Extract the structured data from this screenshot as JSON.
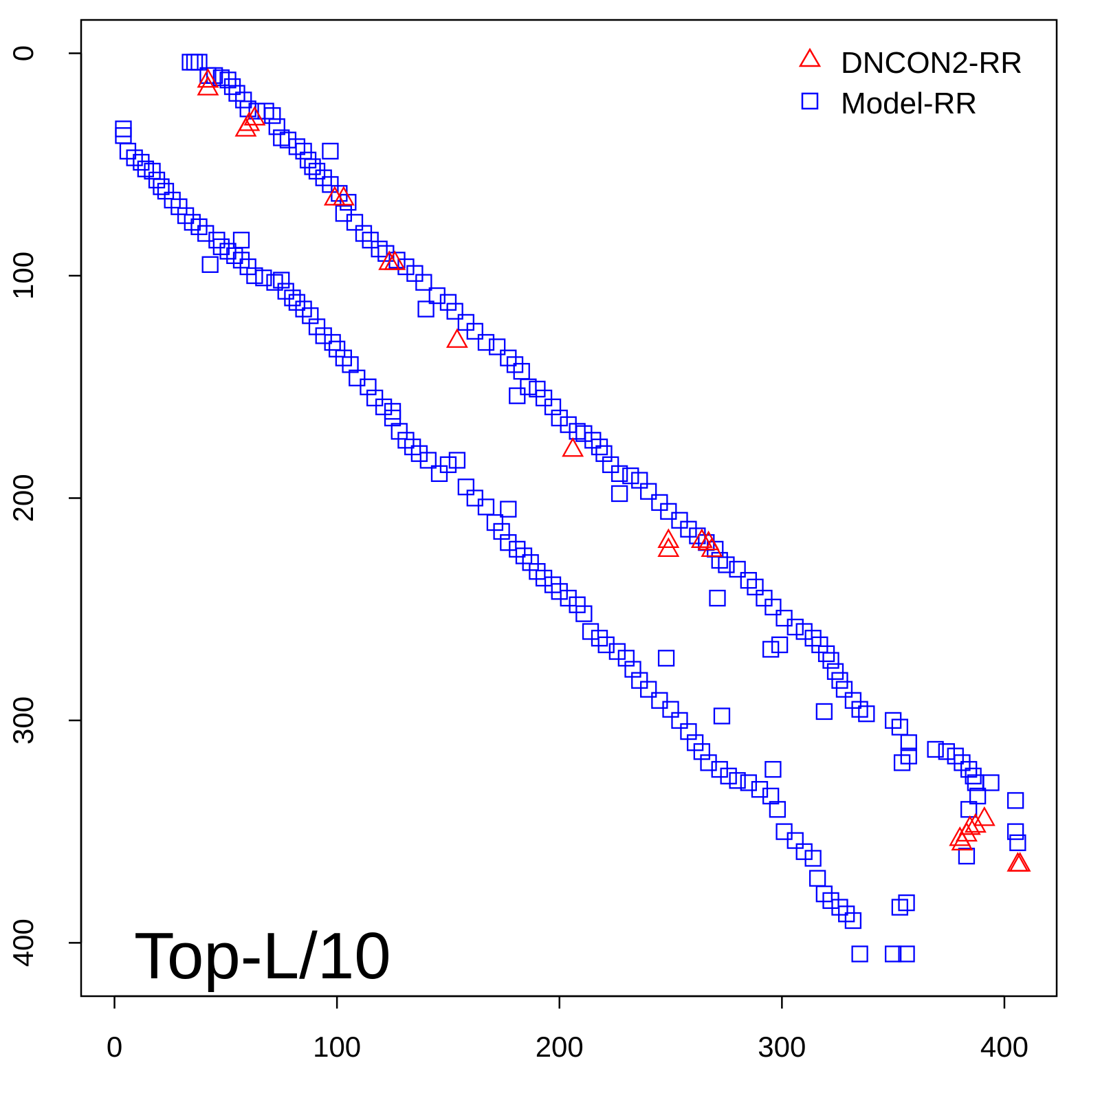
{
  "chart_data": {
    "type": "scatter",
    "title": "",
    "annotation": "Top-L/10",
    "xlabel": "",
    "ylabel": "",
    "xlim": [
      -15,
      423.5
    ],
    "ylim": [
      -15,
      424
    ],
    "y_inverted": true,
    "grid": false,
    "xticks": [
      0,
      100,
      200,
      300,
      400
    ],
    "yticks": [
      0,
      100,
      200,
      300,
      400
    ],
    "xtick_labels": [
      "0",
      "100",
      "200",
      "300",
      "400"
    ],
    "ytick_labels": [
      "0",
      "100",
      "200",
      "300",
      "400"
    ],
    "legend": {
      "placement": "top-right",
      "entries": [
        "DNCON2-RR",
        "Model-RR"
      ]
    },
    "series": [
      {
        "name": "DNCON2-RR",
        "marker": "triangle",
        "color": "#ff0000",
        "points": [
          [
            42,
            12
          ],
          [
            42,
            15.5
          ],
          [
            59,
            34
          ],
          [
            60.5,
            31.5
          ],
          [
            63,
            29
          ],
          [
            99,
            65
          ],
          [
            103,
            65
          ],
          [
            123.5,
            94
          ],
          [
            126,
            94
          ],
          [
            154,
            129
          ],
          [
            206,
            178
          ],
          [
            249,
            219
          ],
          [
            249,
            223
          ],
          [
            264,
            219
          ],
          [
            267,
            220
          ],
          [
            268.5,
            223
          ],
          [
            380,
            353
          ],
          [
            383,
            351
          ],
          [
            384.5,
            348
          ],
          [
            387,
            347
          ],
          [
            391,
            344
          ],
          [
            381,
            355
          ],
          [
            406,
            364.5
          ],
          [
            407,
            364.5
          ]
        ]
      },
      {
        "name": "Model-RR",
        "marker": "square",
        "color": "#0000ff",
        "points": [
          [
            34,
            4
          ],
          [
            36,
            4
          ],
          [
            38,
            4
          ],
          [
            42,
            10
          ],
          [
            45,
            10
          ],
          [
            48,
            11
          ],
          [
            51,
            12
          ],
          [
            53,
            15
          ],
          [
            55,
            18
          ],
          [
            58,
            21
          ],
          [
            60,
            25
          ],
          [
            64,
            26
          ],
          [
            68,
            26
          ],
          [
            71,
            28
          ],
          [
            73,
            33
          ],
          [
            75,
            38
          ],
          [
            78,
            39
          ],
          [
            82,
            42
          ],
          [
            85,
            44
          ],
          [
            87,
            48
          ],
          [
            89,
            51
          ],
          [
            91,
            53
          ],
          [
            94,
            56
          ],
          [
            97,
            59
          ],
          [
            97,
            44
          ],
          [
            101,
            63
          ],
          [
            105,
            67
          ],
          [
            103,
            72
          ],
          [
            108,
            76
          ],
          [
            112,
            81
          ],
          [
            115,
            84
          ],
          [
            119,
            88
          ],
          [
            122,
            90
          ],
          [
            127,
            93
          ],
          [
            131,
            96
          ],
          [
            135,
            99
          ],
          [
            139,
            103
          ],
          [
            140,
            115
          ],
          [
            145,
            109
          ],
          [
            150,
            112
          ],
          [
            153,
            116
          ],
          [
            158,
            121
          ],
          [
            162,
            125
          ],
          [
            167,
            130
          ],
          [
            172,
            132
          ],
          [
            177,
            137
          ],
          [
            180,
            140
          ],
          [
            183,
            143
          ],
          [
            181,
            154
          ],
          [
            186,
            150
          ],
          [
            190,
            151
          ],
          [
            193,
            155
          ],
          [
            197,
            159
          ],
          [
            200,
            164
          ],
          [
            204,
            167
          ],
          [
            208,
            170
          ],
          [
            211,
            171
          ],
          [
            215,
            174
          ],
          [
            218,
            177
          ],
          [
            220,
            180
          ],
          [
            223,
            185
          ],
          [
            227,
            189
          ],
          [
            227,
            198
          ],
          [
            232,
            190
          ],
          [
            236,
            192
          ],
          [
            240,
            197
          ],
          [
            245,
            202
          ],
          [
            249,
            206
          ],
          [
            254,
            210
          ],
          [
            258,
            214
          ],
          [
            262,
            217
          ],
          [
            266,
            220
          ],
          [
            270,
            223
          ],
          [
            272,
            228
          ],
          [
            275,
            230
          ],
          [
            280,
            232
          ],
          [
            285,
            237
          ],
          [
            271,
            245
          ],
          [
            288,
            240
          ],
          [
            292,
            245
          ],
          [
            296,
            249
          ],
          [
            301,
            254
          ],
          [
            306,
            258
          ],
          [
            310,
            260
          ],
          [
            314,
            263
          ],
          [
            317,
            266
          ],
          [
            320,
            270
          ],
          [
            322,
            273
          ],
          [
            324,
            278
          ],
          [
            326,
            282
          ],
          [
            328,
            286
          ],
          [
            332,
            291
          ],
          [
            335,
            295
          ],
          [
            319,
            296
          ],
          [
            338,
            297
          ],
          [
            350,
            300
          ],
          [
            353,
            303
          ],
          [
            357,
            310
          ],
          [
            354,
            319
          ],
          [
            357,
            316
          ],
          [
            295,
            268
          ],
          [
            299,
            266
          ],
          [
            369,
            313
          ],
          [
            374,
            314
          ],
          [
            378,
            316
          ],
          [
            381,
            319
          ],
          [
            384,
            322
          ],
          [
            386,
            325
          ],
          [
            387,
            328
          ],
          [
            394,
            328
          ],
          [
            388,
            334
          ],
          [
            384,
            340
          ],
          [
            405,
            336
          ],
          [
            405,
            350
          ],
          [
            406,
            355
          ],
          [
            383,
            361
          ],
          [
            4,
            34
          ],
          [
            4,
            37
          ],
          [
            6,
            44
          ],
          [
            9,
            47
          ],
          [
            12,
            49
          ],
          [
            14,
            52
          ],
          [
            17,
            53
          ],
          [
            19,
            57
          ],
          [
            21,
            60
          ],
          [
            23,
            62
          ],
          [
            26,
            66
          ],
          [
            29,
            69
          ],
          [
            32,
            73
          ],
          [
            35,
            76
          ],
          [
            38,
            78
          ],
          [
            41,
            81
          ],
          [
            43,
            95
          ],
          [
            46,
            84
          ],
          [
            48,
            87
          ],
          [
            51,
            89
          ],
          [
            54,
            91
          ],
          [
            57,
            93
          ],
          [
            57,
            84
          ],
          [
            60,
            96
          ],
          [
            63,
            100
          ],
          [
            67,
            101
          ],
          [
            72,
            103
          ],
          [
            75,
            102
          ],
          [
            77,
            107
          ],
          [
            80,
            110
          ],
          [
            82,
            112
          ],
          [
            85,
            115
          ],
          [
            88,
            118
          ],
          [
            91,
            123
          ],
          [
            94,
            127
          ],
          [
            98,
            130
          ],
          [
            100,
            133
          ],
          [
            103,
            137
          ],
          [
            106,
            140
          ],
          [
            109,
            146
          ],
          [
            114,
            150
          ],
          [
            117,
            155
          ],
          [
            121,
            159
          ],
          [
            125,
            164
          ],
          [
            125,
            161
          ],
          [
            128,
            170
          ],
          [
            131,
            174
          ],
          [
            134,
            177
          ],
          [
            137,
            180
          ],
          [
            141,
            183
          ],
          [
            146,
            189
          ],
          [
            150,
            185
          ],
          [
            154,
            183
          ],
          [
            158,
            195
          ],
          [
            162,
            200
          ],
          [
            167,
            204
          ],
          [
            171,
            211
          ],
          [
            177,
            205
          ],
          [
            174,
            215
          ],
          [
            177,
            220
          ],
          [
            181,
            223
          ],
          [
            184,
            226
          ],
          [
            187,
            229
          ],
          [
            190,
            233
          ],
          [
            193,
            236
          ],
          [
            197,
            239
          ],
          [
            200,
            242
          ],
          [
            204,
            245
          ],
          [
            208,
            248
          ],
          [
            211,
            252
          ],
          [
            214,
            260
          ],
          [
            218,
            263
          ],
          [
            221,
            266
          ],
          [
            226,
            269
          ],
          [
            230,
            272
          ],
          [
            233,
            277
          ],
          [
            236,
            282
          ],
          [
            240,
            286
          ],
          [
            245,
            291
          ],
          [
            248,
            272
          ],
          [
            250,
            295
          ],
          [
            254,
            300
          ],
          [
            258,
            305
          ],
          [
            261,
            310
          ],
          [
            264,
            314
          ],
          [
            267,
            319
          ],
          [
            273,
            298
          ],
          [
            272,
            322
          ],
          [
            276,
            325
          ],
          [
            280,
            327
          ],
          [
            285,
            328
          ],
          [
            290,
            331
          ],
          [
            296,
            322
          ],
          [
            295,
            334
          ],
          [
            298,
            340
          ],
          [
            301,
            350
          ],
          [
            306,
            354
          ],
          [
            310,
            359
          ],
          [
            314,
            362
          ],
          [
            316,
            371
          ],
          [
            319,
            378
          ],
          [
            322,
            381
          ],
          [
            326,
            384
          ],
          [
            329,
            387
          ],
          [
            332,
            390
          ],
          [
            335,
            405
          ],
          [
            350,
            405
          ],
          [
            353,
            384
          ],
          [
            356,
            382
          ],
          [
            356,
            405
          ]
        ]
      }
    ]
  }
}
